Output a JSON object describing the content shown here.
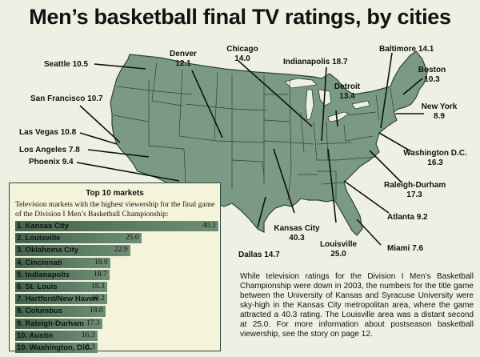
{
  "title": "Men’s basketball final TV ratings, by cities",
  "colors": {
    "map_fill": "#7a9a85",
    "map_stroke": "#2e4338",
    "background": "#eef0e4",
    "bar": "#5a7a63"
  },
  "cities": [
    {
      "key": "seattle",
      "name": "Seattle",
      "rating": "10.5"
    },
    {
      "key": "san_francisco",
      "name": "San Francisco",
      "rating": "10.7"
    },
    {
      "key": "las_vegas",
      "name": "Las Vegas",
      "rating": "10.8"
    },
    {
      "key": "los_angeles",
      "name": "Los Angeles",
      "rating": "7.8"
    },
    {
      "key": "phoenix",
      "name": "Phoenix",
      "rating": "9.4"
    },
    {
      "key": "denver",
      "name": "Denver",
      "rating": "12.1"
    },
    {
      "key": "chicago",
      "name": "Chicago",
      "rating": "14.0"
    },
    {
      "key": "indianapolis",
      "name": "Indianapolis",
      "rating": "18.7"
    },
    {
      "key": "detroit",
      "name": "Detroit",
      "rating": "13.4"
    },
    {
      "key": "baltimore",
      "name": "Baltimore",
      "rating": "14.1"
    },
    {
      "key": "boston",
      "name": "Boston",
      "rating": "10.3"
    },
    {
      "key": "new_york",
      "name": "New York",
      "rating": "8.9"
    },
    {
      "key": "washington",
      "name": "Washington D.C.",
      "rating": "16.3"
    },
    {
      "key": "raleigh",
      "name": "Raleigh-Durham",
      "rating": "17.3"
    },
    {
      "key": "atlanta",
      "name": "Atlanta",
      "rating": "9.2"
    },
    {
      "key": "miami",
      "name": "Miami",
      "rating": "7.6"
    },
    {
      "key": "louisville",
      "name": "Louisville",
      "rating": "25.0"
    },
    {
      "key": "kansas_city",
      "name": "Kansas City",
      "rating": "40.3"
    },
    {
      "key": "dallas",
      "name": "Dallas",
      "rating": "14.7"
    }
  ],
  "top10": {
    "title": "Top 10 markets",
    "description": "Television markets with the highest viewership for the final game of the Division I Men’s Basketball Championship:",
    "max": 40.3,
    "rows": [
      {
        "rank": "1.",
        "name": "Kansas City",
        "value": 40.3,
        "label": "40.3"
      },
      {
        "rank": "2.",
        "name": "Louisville",
        "value": 25.0,
        "label": "25.0"
      },
      {
        "rank": "3.",
        "name": "Oklahoma City",
        "value": 22.9,
        "label": "22.9"
      },
      {
        "rank": "4.",
        "name": "Cincinnati",
        "value": 18.9,
        "label": "18.9"
      },
      {
        "rank": "5.",
        "name": "Indianapolis",
        "value": 18.7,
        "label": "18.7"
      },
      {
        "rank": "6.",
        "name": "St. Louis",
        "value": 18.3,
        "label": "18.3"
      },
      {
        "rank": "7.",
        "name": "Hartford/New Haven",
        "value": 18.2,
        "label": "18.2"
      },
      {
        "rank": "8.",
        "name": "Columbus",
        "value": 18.0,
        "label": "18.0"
      },
      {
        "rank": "9.",
        "name": "Raleigh-Durham",
        "value": 17.3,
        "label": "17.3"
      },
      {
        "rank": "10.",
        "name": "Austin",
        "value": 16.3,
        "label": "16.3"
      },
      {
        "rank": "10.",
        "name": "Washington, D.C.",
        "value": 16.3,
        "label": "16.3"
      }
    ]
  },
  "caption": "While television ratings for the Division I Men’s Basketball Championship were down in 2003, the numbers for the title game between the University of Kansas and Syracuse University were sky-high in the Kansas City metropolitan area, where the game attracted a 40.3 rating. The Louisville area was a distant second at 25.0. For more information about postseason basketball viewership, see the story on page 12."
}
